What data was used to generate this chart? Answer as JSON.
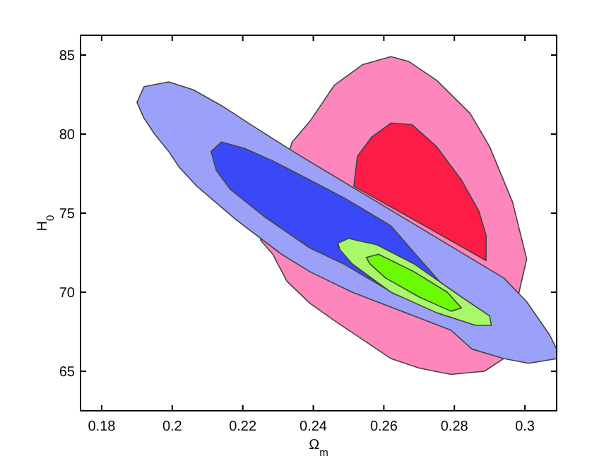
{
  "chart_data": {
    "type": "area",
    "xlabel": "Ω$_{m}$",
    "ylabel": "H$_{0}$",
    "xlim": [
      0.174,
      0.309
    ],
    "ylim": [
      62.5,
      86.25
    ],
    "xticks": [
      0.18,
      0.2,
      0.22,
      0.24,
      0.26,
      0.28,
      0.3
    ],
    "yticks": [
      65,
      70,
      75,
      80,
      85
    ],
    "grid": false,
    "series": [
      {
        "color": "#fd86bd",
        "x": [
          0.262,
          0.267,
          0.275,
          0.2845,
          0.29,
          0.2965,
          0.3005,
          0.294,
          0.2885,
          0.279,
          0.27,
          0.262,
          0.254,
          0.246,
          0.239,
          0.2325,
          0.2285,
          0.225,
          0.234,
          0.239,
          0.246,
          0.254
        ],
        "values": [
          84.9,
          84.6,
          83.4,
          81.3,
          79.2,
          75.7,
          72.1,
          65.8,
          65.0,
          64.8,
          65.2,
          65.8,
          67.0,
          68.2,
          69.3,
          70.7,
          72.4,
          73.3,
          79.5,
          80.8,
          83.1,
          84.4
        ]
      },
      {
        "color": "#fc1c46",
        "x": [
          0.2515,
          0.2525,
          0.2565,
          0.262,
          0.268,
          0.275,
          0.282,
          0.287,
          0.289,
          0.289,
          0.27
        ],
        "values": [
          76.7,
          78.6,
          79.8,
          80.7,
          80.6,
          79.2,
          77.1,
          75.1,
          73.6,
          72.0,
          74.4
        ]
      },
      {
        "color": "#9ba0f8",
        "x": [
          0.19,
          0.192,
          0.199,
          0.206,
          0.214,
          0.223,
          0.235,
          0.294,
          0.3005,
          0.307,
          0.309,
          0.309,
          0.301,
          0.294,
          0.285,
          0.279,
          0.251,
          0.239,
          0.231,
          0.218,
          0.207,
          0.202,
          0.199,
          0.195,
          0.192
        ],
        "values": [
          82.0,
          83.0,
          83.3,
          82.8,
          81.8,
          80.5,
          78.8,
          70.9,
          69.4,
          67.3,
          66.4,
          65.8,
          65.5,
          65.8,
          66.4,
          67.6,
          70.0,
          71.3,
          72.4,
          74.6,
          76.7,
          77.9,
          78.9,
          80.0,
          81.0
        ]
      },
      {
        "color": "#3a49f8",
        "x": [
          0.211,
          0.214,
          0.2205,
          0.2285,
          0.239,
          0.2485,
          0.262,
          0.269,
          0.2765,
          0.263,
          0.2485,
          0.239,
          0.226,
          0.2165,
          0.2125
        ],
        "values": [
          78.9,
          79.5,
          79.1,
          78.3,
          77.1,
          76.0,
          74.2,
          72.4,
          70.5,
          69.9,
          71.8,
          72.8,
          74.8,
          76.5,
          77.7
        ]
      },
      {
        "color": "#a9f86a",
        "x": [
          0.247,
          0.25,
          0.258,
          0.2685,
          0.282,
          0.29,
          0.2905,
          0.286,
          0.275,
          0.262,
          0.251,
          0.2475
        ],
        "values": [
          73.1,
          73.4,
          73.0,
          71.8,
          69.7,
          68.5,
          67.9,
          67.9,
          68.7,
          70.0,
          71.8,
          72.7
        ]
      },
      {
        "color": "#6afb03",
        "x": [
          0.255,
          0.2585,
          0.2685,
          0.278,
          0.282,
          0.279,
          0.27,
          0.2605,
          0.256
        ],
        "values": [
          72.2,
          72.4,
          71.3,
          70.0,
          69.0,
          68.8,
          69.7,
          70.9,
          71.8
        ]
      }
    ]
  }
}
